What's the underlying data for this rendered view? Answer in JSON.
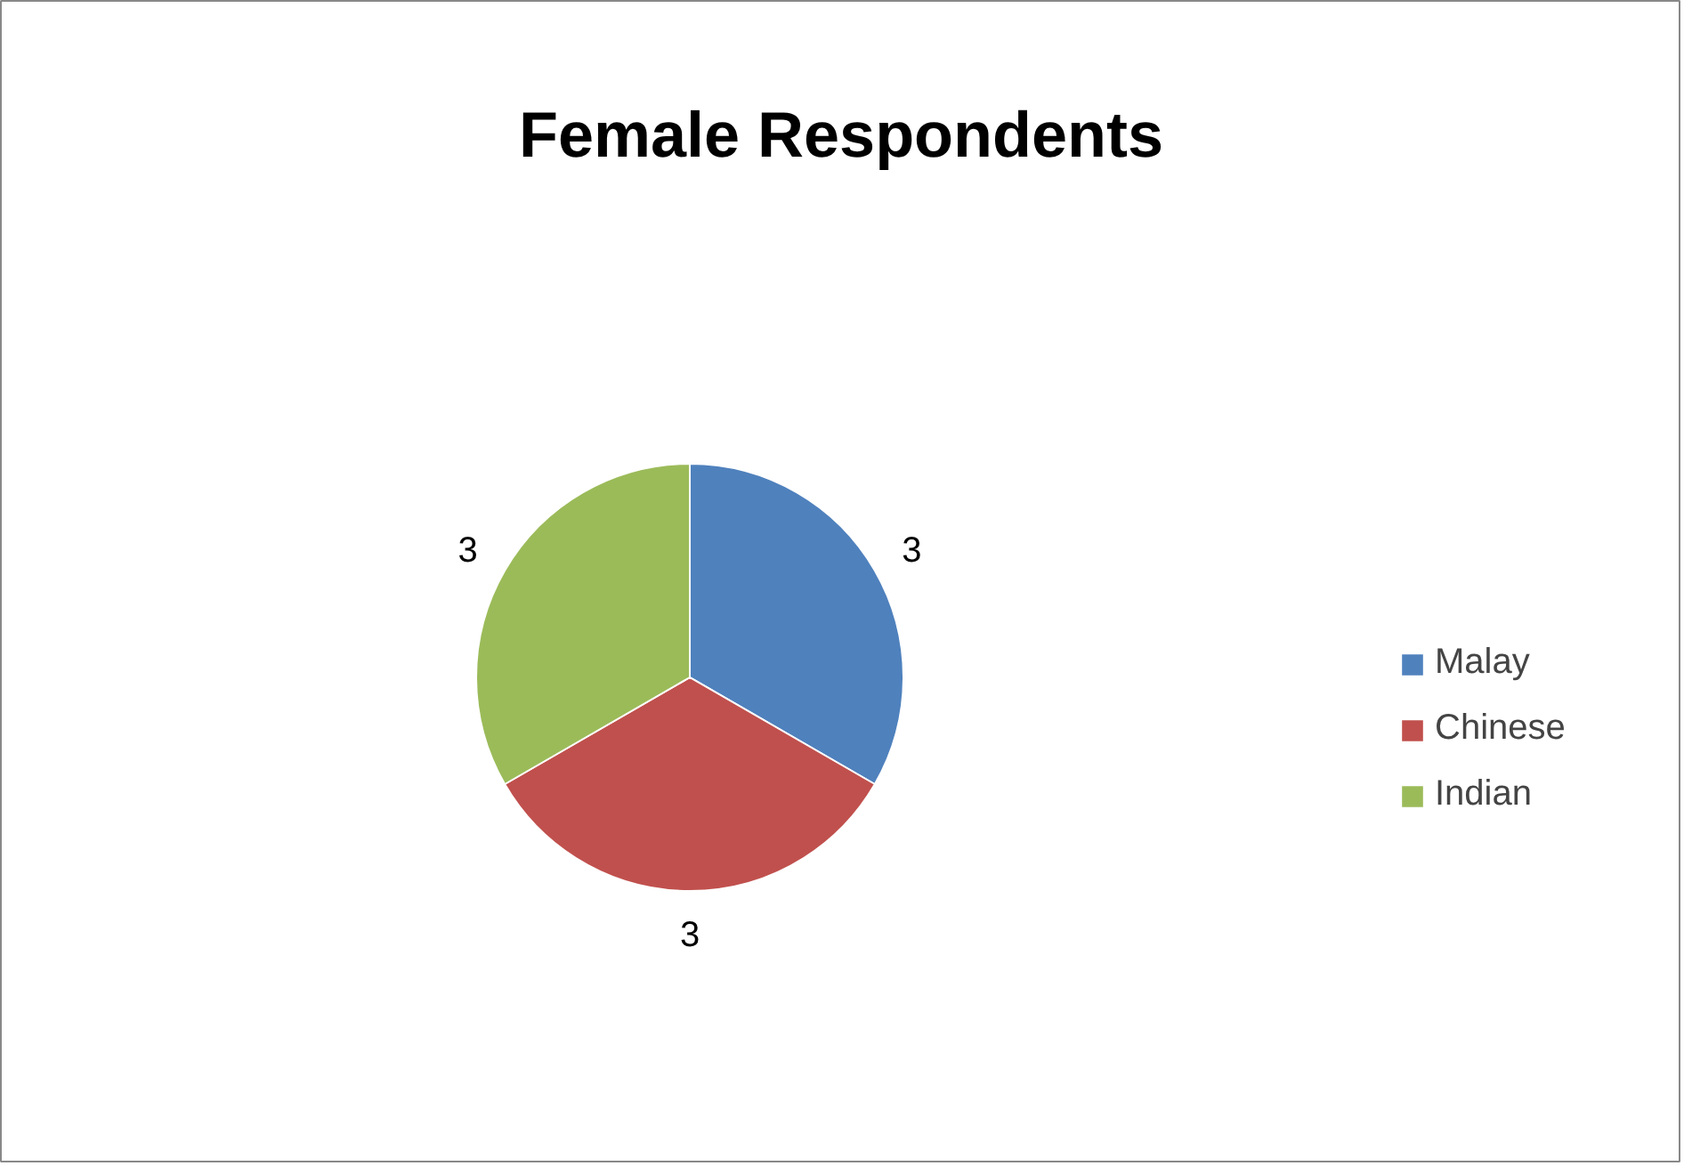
{
  "chart_data": {
    "type": "pie",
    "title": "Female Respondents",
    "categories": [
      "Malay",
      "Chinese",
      "Indian"
    ],
    "values": [
      3,
      3,
      3
    ],
    "colors": [
      "#4f81bd",
      "#c0504d",
      "#9bbb59"
    ],
    "data_labels": true,
    "legend": "right"
  }
}
